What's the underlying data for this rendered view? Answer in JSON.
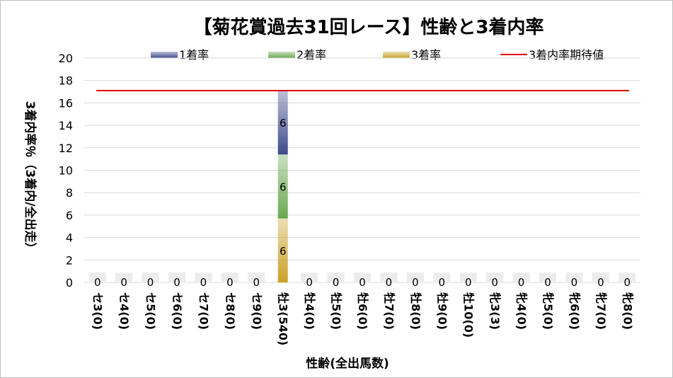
{
  "chart_data": {
    "type": "bar",
    "stacked": true,
    "title": "【菊花賞過去31回レース】性齢と3着内率",
    "xlabel": "性齢(全出馬数)",
    "ylabel": "3着内率％（3着内/全出走）",
    "ylim": [
      0,
      20
    ],
    "yticks": [
      0,
      2,
      4,
      6,
      8,
      10,
      12,
      14,
      16,
      18,
      20
    ],
    "grid": true,
    "legend_position": "top",
    "categories": [
      "セ3(0)",
      "セ4(0)",
      "セ5(0)",
      "セ6(0)",
      "セ7(0)",
      "セ8(0)",
      "セ9(0)",
      "牡3(540)",
      "牡4(0)",
      "牡5(0)",
      "牡6(0)",
      "牡7(0)",
      "牡8(0)",
      "牡9(0)",
      "牡10(0)",
      "牝3(3)",
      "牝4(0)",
      "牝5(0)",
      "牝6(0)",
      "牝7(0)",
      "牝8(0)"
    ],
    "series": [
      {
        "name": "3着率",
        "color": "#c9a227",
        "values": [
          0,
          0,
          0,
          0,
          0,
          0,
          0,
          5.7,
          0,
          0,
          0,
          0,
          0,
          0,
          0,
          0,
          0,
          0,
          0,
          0,
          0
        ],
        "labels": [
          "",
          "",
          "",
          "",
          "",
          "",
          "",
          "6",
          "",
          "",
          "",
          "",
          "",
          "",
          "",
          "",
          "",
          "",
          "",
          "",
          ""
        ]
      },
      {
        "name": "2着率",
        "color": "#6aa84f",
        "values": [
          0,
          0,
          0,
          0,
          0,
          0,
          0,
          5.7,
          0,
          0,
          0,
          0,
          0,
          0,
          0,
          0,
          0,
          0,
          0,
          0,
          0
        ],
        "labels": [
          "",
          "",
          "",
          "",
          "",
          "",
          "",
          "6",
          "",
          "",
          "",
          "",
          "",
          "",
          "",
          "",
          "",
          "",
          "",
          "",
          ""
        ]
      },
      {
        "name": "1着率",
        "color": "#3f4b8c",
        "values": [
          0,
          0,
          0,
          0,
          0,
          0,
          0,
          5.7,
          0,
          0,
          0,
          0,
          0,
          0,
          0,
          0,
          0,
          0,
          0,
          0,
          0
        ],
        "labels": [
          "",
          "",
          "",
          "",
          "",
          "",
          "",
          "6",
          "",
          "",
          "",
          "",
          "",
          "",
          "",
          "",
          "",
          "",
          "",
          "",
          ""
        ]
      }
    ],
    "zero_labels": [
      "0",
      "0",
      "0",
      "0",
      "0",
      "0",
      "0",
      "",
      "0",
      "0",
      "0",
      "0",
      "0",
      "0",
      "0",
      "0",
      "0",
      "0",
      "0",
      "0",
      "0"
    ],
    "reference_line": {
      "name": "3着内率期待値",
      "value": 17.1,
      "color": "#e00000"
    },
    "legend": [
      {
        "name": "1着率",
        "color": "#3f4b8c"
      },
      {
        "name": "2着率",
        "color": "#6aa84f"
      },
      {
        "name": "3着率",
        "color": "#c9a227"
      },
      {
        "name": "3着内率期待値",
        "color": "#e00000",
        "kind": "line"
      }
    ]
  }
}
